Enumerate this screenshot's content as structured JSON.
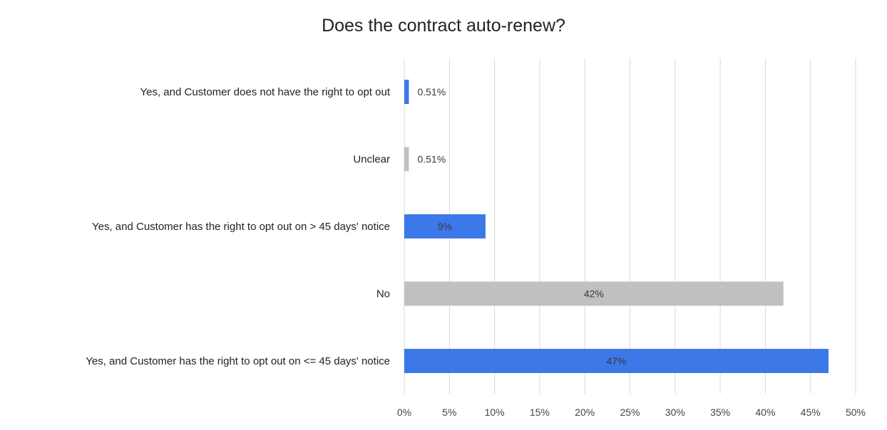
{
  "chart_data": {
    "type": "bar",
    "orientation": "horizontal",
    "title": "Does the contract auto-renew?",
    "xlabel": "",
    "ylabel": "",
    "xlim": [
      0,
      50
    ],
    "x_ticks": [
      "0%",
      "5%",
      "10%",
      "15%",
      "20%",
      "25%",
      "30%",
      "35%",
      "40%",
      "45%",
      "50%"
    ],
    "grid": "vertical gridlines",
    "legend": "none",
    "categories": [
      "Yes, and Customer does not have the right to opt out",
      "Unclear",
      "Yes, and Customer has the right to opt out on > 45 days' notice",
      "No",
      "Yes, and Customer has the right to opt out on <= 45 days' notice"
    ],
    "values": [
      0.51,
      0.51,
      9,
      42,
      47
    ],
    "data_labels": [
      "0.51%",
      "0.51%",
      "9%",
      "42%",
      "47%"
    ],
    "colors": [
      "#3c78e8",
      "#c0c0c0",
      "#3c78e8",
      "#c0c0c0",
      "#3c78e8"
    ],
    "gridline_color": "#d9d9d9"
  }
}
